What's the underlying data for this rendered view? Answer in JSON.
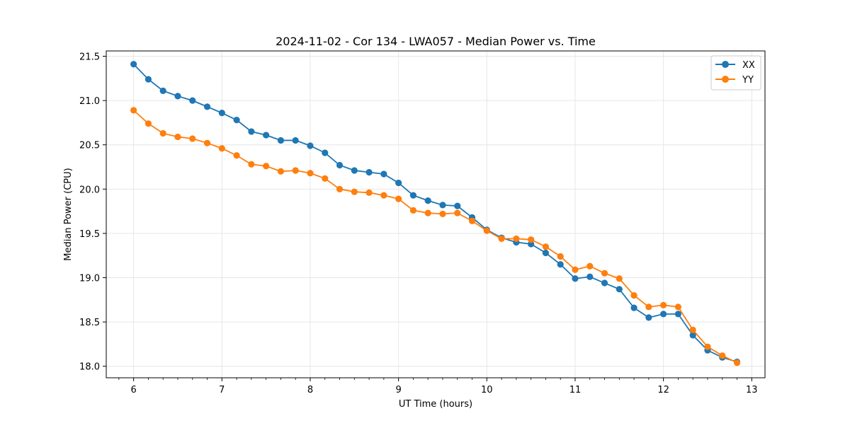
{
  "chart_data": {
    "type": "line",
    "title": "2024-11-02 - Cor 134 - LWA057 - Median Power vs. Time",
    "xlabel": "UT Time (hours)",
    "ylabel": "Median Power (CPU)",
    "xlim": [
      5.69,
      13.15
    ],
    "ylim": [
      17.87,
      21.56
    ],
    "xticks": [
      6,
      7,
      8,
      9,
      10,
      11,
      12,
      13
    ],
    "yticks": [
      18.0,
      18.5,
      19.0,
      19.5,
      20.0,
      20.5,
      21.0,
      21.5
    ],
    "xtick_labels": [
      "6",
      "7",
      "8",
      "9",
      "10",
      "11",
      "12",
      "13"
    ],
    "ytick_labels": [
      "18.0",
      "18.5",
      "19.0",
      "19.5",
      "20.0",
      "20.5",
      "21.0",
      "21.5"
    ],
    "grid": true,
    "legend_position": "top-right",
    "x": [
      6.0,
      6.1667,
      6.3333,
      6.5,
      6.6667,
      6.8333,
      7.0,
      7.1667,
      7.3333,
      7.5,
      7.6667,
      7.8333,
      8.0,
      8.1667,
      8.3333,
      8.5,
      8.6667,
      8.8333,
      9.0,
      9.1667,
      9.3333,
      9.5,
      9.6667,
      9.8333,
      10.0,
      10.1667,
      10.3333,
      10.5,
      10.6667,
      10.8333,
      11.0,
      11.1667,
      11.3333,
      11.5,
      11.6667,
      11.8333,
      12.0,
      12.1667,
      12.3333,
      12.5,
      12.6667,
      12.8333
    ],
    "series": [
      {
        "name": "XX",
        "color": "#1f77b4",
        "values": [
          21.41,
          21.24,
          21.11,
          21.05,
          21.0,
          20.93,
          20.86,
          20.78,
          20.65,
          20.61,
          20.55,
          20.55,
          20.49,
          20.41,
          20.27,
          20.21,
          20.19,
          20.17,
          20.07,
          19.93,
          19.87,
          19.82,
          19.81,
          19.68,
          19.54,
          19.45,
          19.4,
          19.38,
          19.28,
          19.15,
          18.99,
          19.01,
          18.94,
          18.87,
          18.66,
          18.55,
          18.59,
          18.59,
          18.35,
          18.18,
          18.1,
          18.05
        ]
      },
      {
        "name": "YY",
        "color": "#ff7f0e",
        "values": [
          20.89,
          20.74,
          20.63,
          20.59,
          20.57,
          20.52,
          20.46,
          20.38,
          20.28,
          20.26,
          20.2,
          20.21,
          20.18,
          20.12,
          20.0,
          19.97,
          19.96,
          19.93,
          19.89,
          19.76,
          19.73,
          19.72,
          19.73,
          19.64,
          19.53,
          19.44,
          19.44,
          19.43,
          19.35,
          19.24,
          19.09,
          19.13,
          19.05,
          18.99,
          18.8,
          18.67,
          18.69,
          18.67,
          18.41,
          18.22,
          18.12,
          18.04
        ]
      }
    ]
  }
}
